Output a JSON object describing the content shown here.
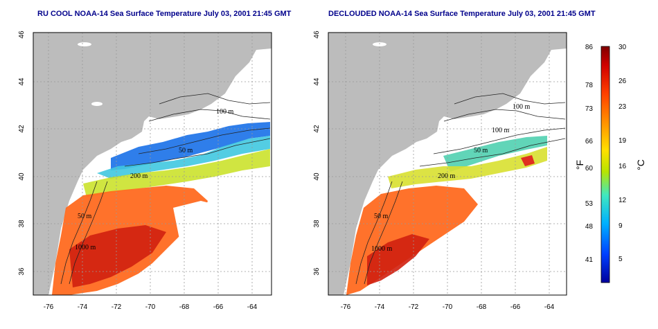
{
  "panels": [
    {
      "title": "RU COOL NOAA-14 Sea Surface Temperature July 03, 2001 21:45 GMT",
      "contours": [
        "100 m",
        "50 m",
        "200 m",
        "50 m",
        "1000 m"
      ]
    },
    {
      "title": "DECLOUDED NOAA-14 Sea Surface Temperature July 03, 2001 21:45 GMT",
      "contours": [
        "100 m",
        "100 m",
        "50 m",
        "200 m",
        "50 m",
        "1000 m"
      ]
    }
  ],
  "map_axes": {
    "lon_ticks": [
      "-76",
      "-74",
      "-72",
      "-70",
      "-68",
      "-66",
      "-64"
    ],
    "lat_ticks": [
      "46",
      "44",
      "42",
      "40",
      "38",
      "36"
    ]
  },
  "colorbar": {
    "f_ticks": [
      "86",
      "78",
      "73",
      "66",
      "60",
      "53",
      "48",
      "41"
    ],
    "c_ticks": [
      "30",
      "26",
      "23",
      "19",
      "16",
      "12",
      "9",
      "5"
    ],
    "f_label": "°F",
    "c_label": "°C",
    "colors": [
      "#0000a0",
      "#0060ff",
      "#00c0ff",
      "#40e0a0",
      "#c0e000",
      "#ffd000",
      "#ff8000",
      "#ff3000",
      "#c00000",
      "#800000"
    ]
  },
  "colors": {
    "land": "#bcbcbc",
    "ocean": "#ffffff",
    "cold": "#1060e0",
    "cool": "#40c8e0",
    "mild": "#c8e020",
    "warm": "#ff7020",
    "hot": "#e03010",
    "title": "#00008b"
  }
}
